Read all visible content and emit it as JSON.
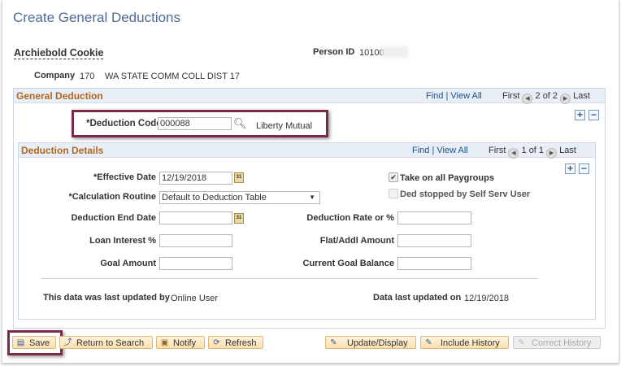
{
  "page": {
    "title": "Create General Deductions"
  },
  "person": {
    "name": "Archiebold Cookie",
    "person_id_label": "Person ID",
    "person_id": "10100"
  },
  "company": {
    "label": "Company",
    "code": "170",
    "name": "WA STATE COMM COLL DIST 17"
  },
  "general_deduction": {
    "title": "General Deduction",
    "find": "Find",
    "view_all": "View All",
    "first": "First",
    "position": "2 of 2",
    "last": "Last",
    "deduction_code_label": "*Deduction Code",
    "deduction_code": "000088",
    "deduction_name": "Liberty Mutual"
  },
  "details": {
    "title": "Deduction Details",
    "find": "Find",
    "view_all": "View All",
    "first": "First",
    "position": "1 of 1",
    "last": "Last",
    "effective_date_label": "*Effective Date",
    "effective_date": "12/19/2018",
    "calc_routine_label": "*Calculation Routine",
    "calc_routine": "Default to Deduction Table",
    "end_date_label": "Deduction End Date",
    "end_date": "",
    "loan_interest_label": "Loan Interest %",
    "loan_interest": "",
    "goal_amount_label": "Goal Amount",
    "goal_amount": "",
    "take_all_paygroups_label": "Take on all Paygroups",
    "take_all_paygroups": true,
    "ded_stopped_label": "Ded stopped by Self Serv User",
    "ded_stopped": false,
    "rate_label": "Deduction Rate or %",
    "rate": "",
    "flat_label": "Flat/Addl Amount",
    "flat": "",
    "goal_balance_label": "Current Goal Balance",
    "goal_balance": "",
    "updated_by_label": "This data was last updated by",
    "updated_by": "Online User",
    "updated_on_label": "Data last updated on",
    "updated_on": "12/19/2018"
  },
  "toolbar": {
    "save": "Save",
    "return": "Return to Search",
    "notify": "Notify",
    "refresh": "Refresh",
    "update_display": "Update/Display",
    "include_history": "Include History",
    "correct_history": "Correct History"
  },
  "colors": {
    "title": "#4d6b96",
    "group_title": "#b0661f",
    "highlight": "#7a2a48",
    "button": "#fbdfae"
  }
}
